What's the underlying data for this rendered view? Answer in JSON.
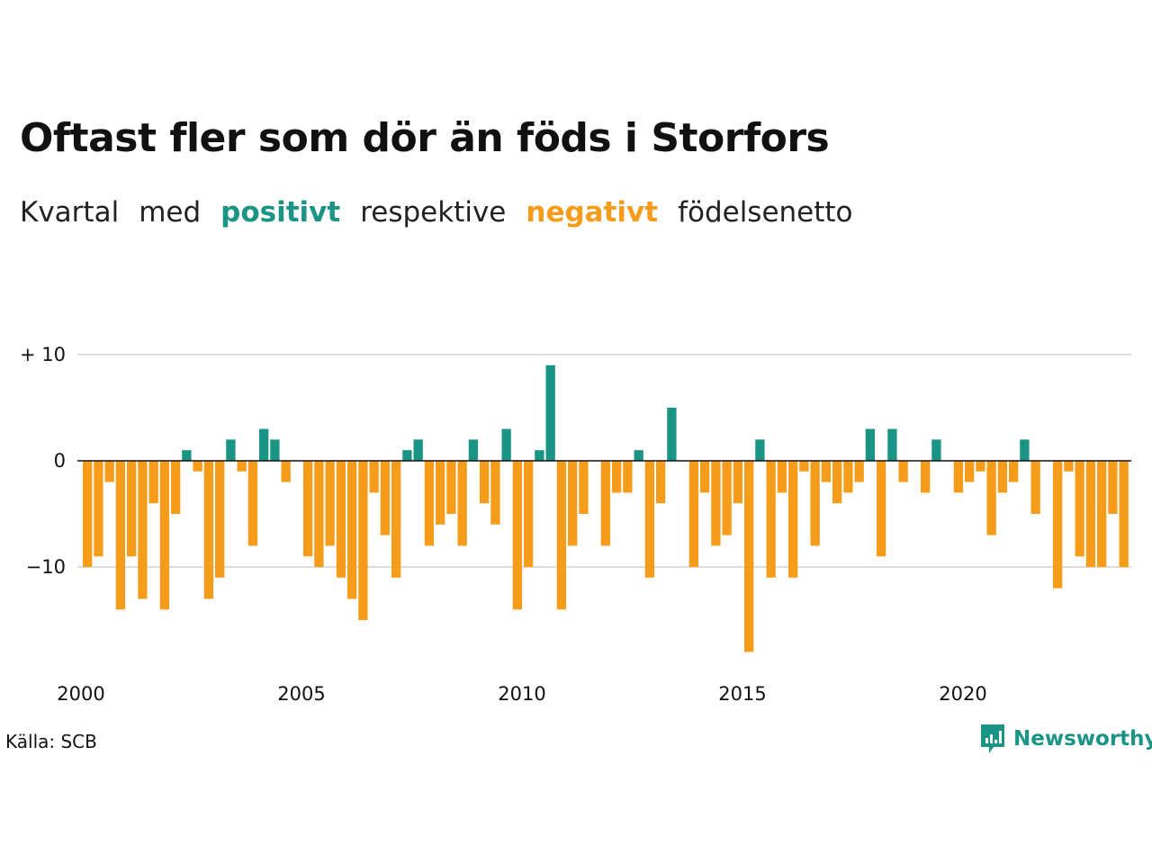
{
  "header": {
    "title": "Oftast fler som dör än föds i Storfors",
    "subtitle_parts": [
      "Kvartal",
      "med",
      "positivt",
      "respektive",
      "negativt",
      "födelsenetto"
    ]
  },
  "colors": {
    "positive": "#1a9484",
    "negative": "#f59c1a",
    "grid": "#dddddd",
    "baseline": "#111111"
  },
  "footer": {
    "source": "Källa: SCB",
    "brand": "Newsworthy",
    "brand_icon": "newsworthy-logo-icon"
  },
  "chart_data": {
    "type": "bar",
    "title": "Oftast fler som dör än föds i Storfors",
    "subtitle": "Kvartal med positivt respektive negativt födelsenetto",
    "xlabel": "",
    "ylabel": "",
    "start_year": 2000,
    "quarters_per_year": 4,
    "ylim": [
      -18,
      10
    ],
    "y_ticks": [
      10,
      0,
      -10
    ],
    "y_tick_labels": [
      "+ 10",
      "0",
      "−10"
    ],
    "x_ticks": [
      2000,
      2005,
      2010,
      2015,
      2020
    ],
    "x_tick_labels": [
      "2000",
      "2005",
      "2010",
      "2015",
      "2020"
    ],
    "grid": true,
    "values": [
      -10,
      -9,
      -2,
      -14,
      -9,
      -13,
      -4,
      -14,
      -5,
      1,
      -1,
      -13,
      -11,
      2,
      -1,
      -8,
      3,
      2,
      -2,
      0,
      -9,
      -10,
      -8,
      -11,
      -13,
      -15,
      -3,
      -7,
      -11,
      1,
      2,
      -8,
      -6,
      -5,
      -8,
      2,
      -4,
      -6,
      3,
      -14,
      -10,
      1,
      9,
      -14,
      -8,
      -5,
      0,
      -8,
      -3,
      -3,
      1,
      -11,
      -4,
      5,
      0,
      -10,
      -3,
      -8,
      -7,
      -4,
      -18,
      2,
      -11,
      -3,
      -11,
      -1,
      -8,
      -2,
      -4,
      -3,
      -2,
      3,
      -9,
      3,
      -2,
      0,
      -3,
      2,
      0,
      -3,
      -2,
      -1,
      -7,
      -3,
      -2,
      2,
      -5,
      0,
      -12,
      -1,
      -9,
      -10,
      -10,
      -5,
      -10
    ]
  }
}
